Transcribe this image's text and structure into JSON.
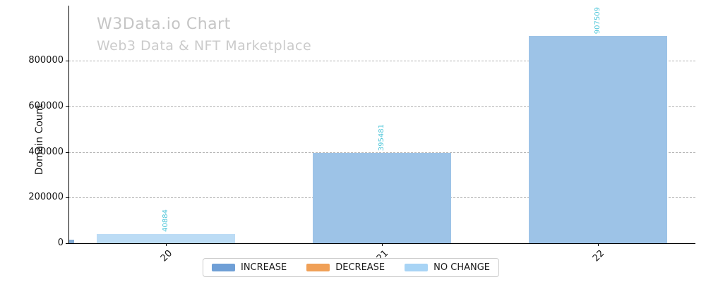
{
  "chart": {
    "title": "W3Data.io Chart",
    "subtitle": "Web3 Data & NFT Marketplace",
    "ylabel": "Domain Count",
    "colors": {
      "title_gray": "#c5c5c5",
      "grid_gray": "#b2b2b2",
      "axis_black": "#000000",
      "value_label_cyan": "#4ec6d9",
      "fill_no_change_bar": "#bcdcf5",
      "fill_increase_bar": "#9dc3e7",
      "edge_artifact_fill": "#83abd4"
    }
  },
  "chart_data": {
    "type": "bar",
    "title": "W3Data.io Chart",
    "subtitle": "Web3 Data & NFT Marketplace",
    "xlabel": "",
    "ylabel": "Domain Count",
    "ylim": [
      0,
      950000
    ],
    "y_ticks": [
      0,
      200000,
      400000,
      600000,
      800000
    ],
    "grid": "horizontal-dashed",
    "categories": [
      "20",
      "21",
      "22"
    ],
    "legend_position": "bottom-center",
    "series": [
      {
        "name": "INCREASE",
        "values": [
          0,
          395481,
          907509
        ]
      },
      {
        "name": "DECREASE",
        "values": [
          0,
          0,
          0
        ]
      },
      {
        "name": "NO CHANGE",
        "values": [
          40884,
          0,
          0
        ]
      }
    ],
    "bars": [
      {
        "category": "20",
        "value": 40884,
        "label": "40884",
        "series": "NO CHANGE",
        "fill": "#bcdcf5"
      },
      {
        "category": "21",
        "value": 395481,
        "label": "395481",
        "series": "INCREASE",
        "fill": "#9dc3e7"
      },
      {
        "category": "22",
        "value": 907509,
        "label": "907509",
        "series": "INCREASE",
        "fill": "#9dc3e7"
      }
    ],
    "edge_artifact_bar": {
      "value_estimate": 15000,
      "note": "tiny unlabeled bar at left axis origin",
      "fill": "#83abd4"
    }
  },
  "legend": {
    "items": [
      {
        "label": "INCREASE",
        "color": "#6f9fd6"
      },
      {
        "label": "DECREASE",
        "color": "#f0a057"
      },
      {
        "label": "NO CHANGE",
        "color": "#a8d4f5"
      }
    ]
  }
}
